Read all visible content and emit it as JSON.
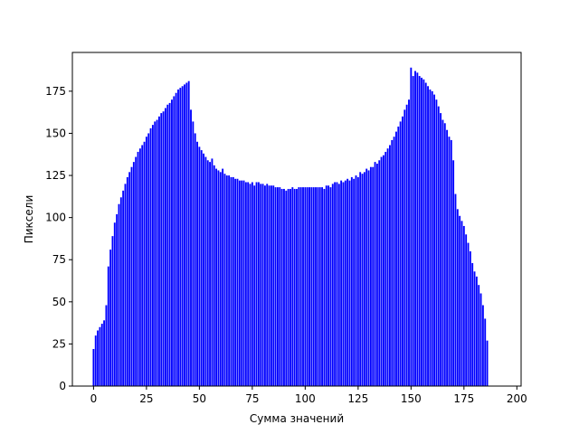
{
  "chart_data": {
    "type": "bar",
    "title": "",
    "xlabel": "Сумма значений",
    "ylabel": "Пиксели",
    "xlim": [
      -10,
      202
    ],
    "ylim": [
      0,
      198
    ],
    "xticks": [
      0,
      25,
      50,
      75,
      100,
      125,
      150,
      175,
      200
    ],
    "yticks": [
      0,
      25,
      50,
      75,
      100,
      125,
      150,
      175
    ],
    "bar_color": "#0000ff",
    "grid": false,
    "x_start": 0,
    "values": [
      22,
      30,
      33,
      35,
      37,
      39,
      48,
      71,
      81,
      89,
      97,
      102,
      108,
      112,
      116,
      120,
      124,
      127,
      130,
      133,
      136,
      139,
      141,
      143,
      145,
      148,
      150,
      153,
      155,
      157,
      158,
      160,
      162,
      163,
      165,
      167,
      168,
      170,
      172,
      174,
      176,
      177,
      178,
      179,
      180,
      181,
      164,
      157,
      150,
      145,
      142,
      140,
      138,
      136,
      134,
      133,
      135,
      131,
      129,
      128,
      127,
      129,
      126,
      125,
      125,
      124,
      124,
      123,
      123,
      122,
      122,
      122,
      121,
      121,
      120,
      121,
      119,
      121,
      121,
      120,
      120,
      119,
      120,
      119,
      119,
      119,
      118,
      118,
      118,
      117,
      117,
      116,
      117,
      117,
      118,
      117,
      117,
      118,
      118,
      118,
      118,
      118,
      118,
      118,
      118,
      118,
      118,
      118,
      118,
      117,
      119,
      119,
      118,
      120,
      121,
      121,
      120,
      122,
      121,
      122,
      123,
      122,
      124,
      123,
      125,
      124,
      127,
      126,
      127,
      129,
      128,
      130,
      130,
      133,
      132,
      134,
      136,
      137,
      139,
      141,
      143,
      146,
      148,
      151,
      154,
      157,
      160,
      164,
      167,
      170,
      189,
      184,
      187,
      186,
      184,
      183,
      182,
      180,
      178,
      176,
      175,
      173,
      170,
      166,
      162,
      158,
      156,
      152,
      148,
      146,
      134,
      114,
      105,
      101,
      98,
      95,
      90,
      85,
      80,
      73,
      68,
      65,
      60,
      55,
      48,
      40,
      27
    ]
  }
}
